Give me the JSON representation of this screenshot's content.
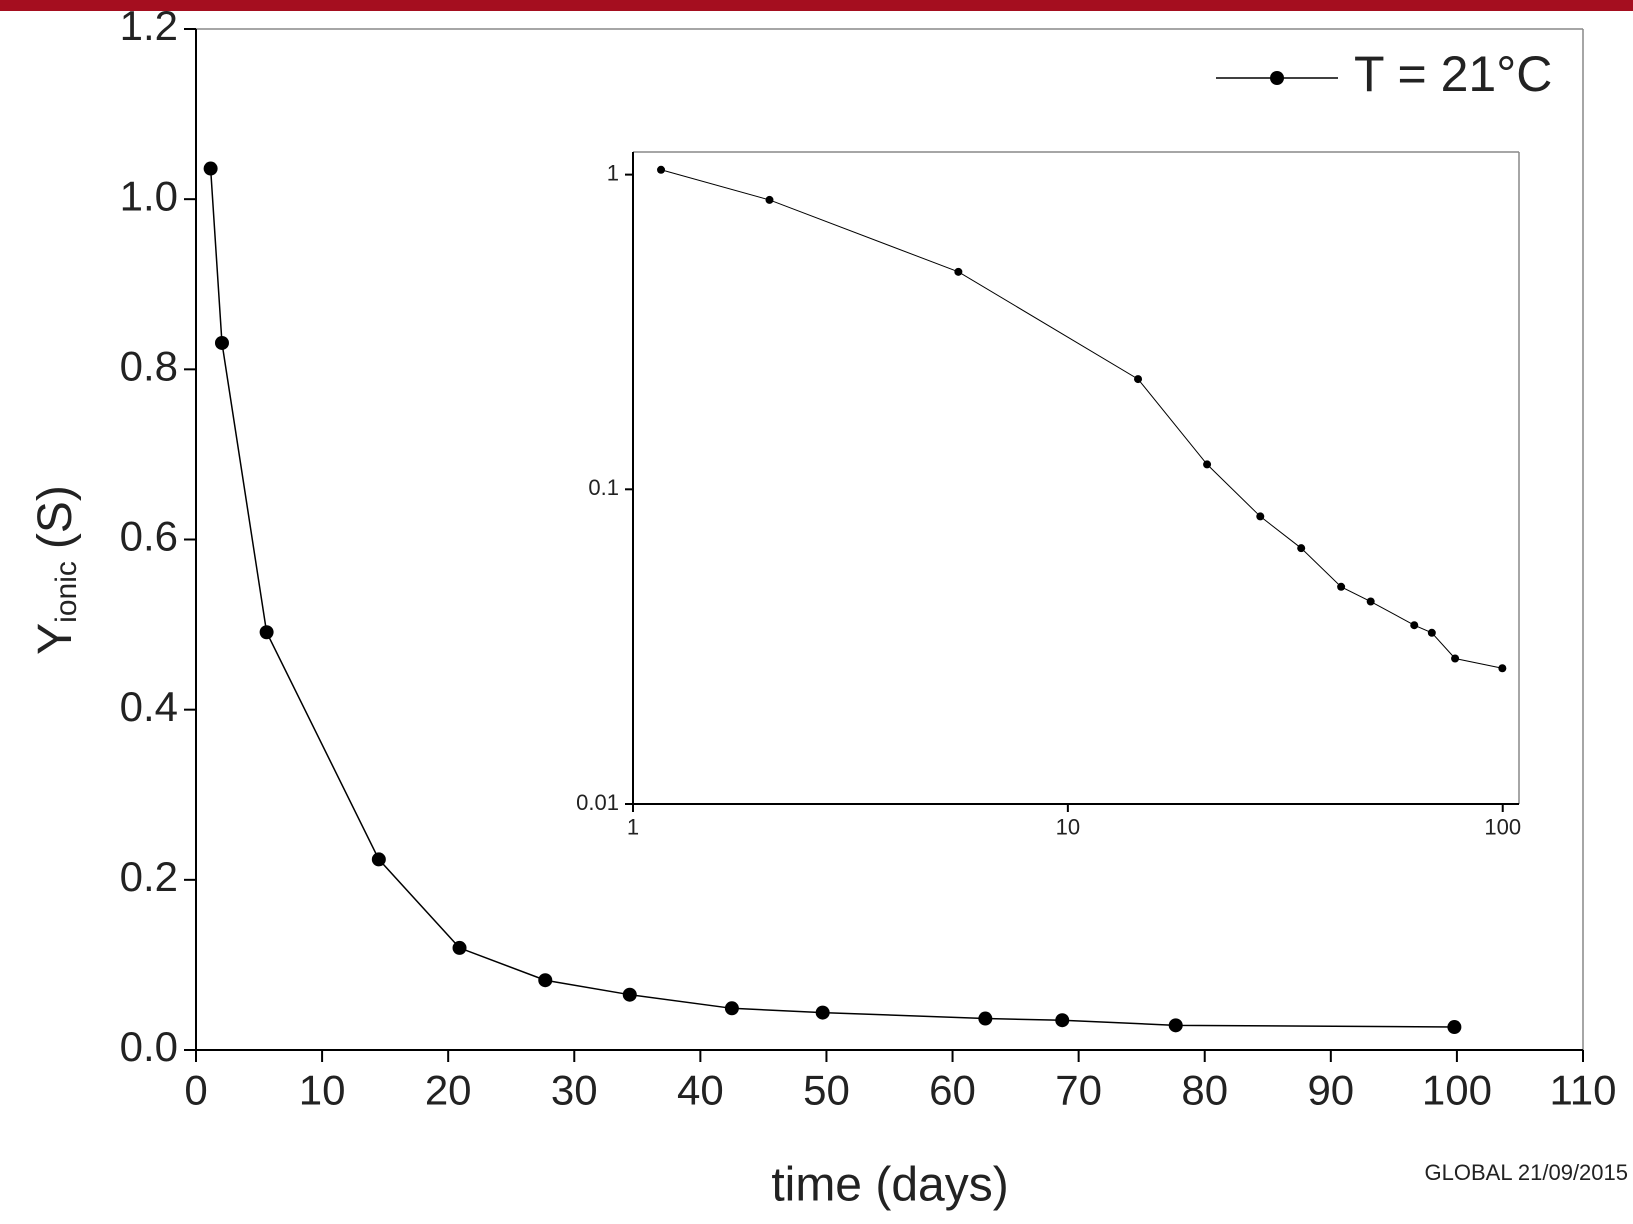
{
  "chart_data": [
    {
      "type": "line",
      "x_label": "time (days)",
      "y_label": {
        "main": "Y",
        "subscript": "ionic",
        "unit": "(S)"
      },
      "x": [
        1.16,
        2.06,
        5.6,
        14.5,
        20.9,
        27.7,
        34.4,
        42.5,
        49.7,
        62.6,
        68.7,
        77.7,
        99.8
      ],
      "series": [
        {
          "name": "T = 21°C",
          "color": "#000000",
          "values": [
            1.036,
            0.831,
            0.491,
            0.224,
            0.12,
            0.082,
            0.065,
            0.049,
            0.044,
            0.037,
            0.035,
            0.029,
            0.027
          ]
        }
      ],
      "xlim": [
        0,
        110
      ],
      "ylim": [
        0,
        1.2
      ],
      "xticks": [
        0,
        10,
        20,
        30,
        40,
        50,
        60,
        70,
        80,
        90,
        100,
        110
      ],
      "yticks": [
        {
          "value": 0,
          "label": "0.0"
        },
        0.2,
        0.4,
        0.6,
        0.8,
        {
          "value": 1,
          "label": "1.0"
        },
        1.2
      ],
      "legend": "upper right"
    },
    {
      "type": "line",
      "xscale": "log",
      "yscale": "log",
      "x": [
        1.16,
        2.06,
        5.6,
        14.5,
        20.9,
        27.7,
        34.4,
        42.5,
        49.7,
        62.6,
        68.7,
        77.7,
        99.8
      ],
      "series": [
        {
          "color": "#000000",
          "values": [
            1.036,
            0.831,
            0.491,
            0.224,
            0.12,
            0.082,
            0.065,
            0.049,
            0.044,
            0.037,
            0.035,
            0.029,
            0.027
          ]
        }
      ],
      "xlim": [
        1,
        109
      ],
      "ylim": [
        0.01,
        1.18
      ],
      "xticks": [
        1,
        10,
        100
      ],
      "yticks": [
        0.01,
        0.1,
        1
      ]
    }
  ],
  "footer": "GLOBAL 21/09/2015"
}
